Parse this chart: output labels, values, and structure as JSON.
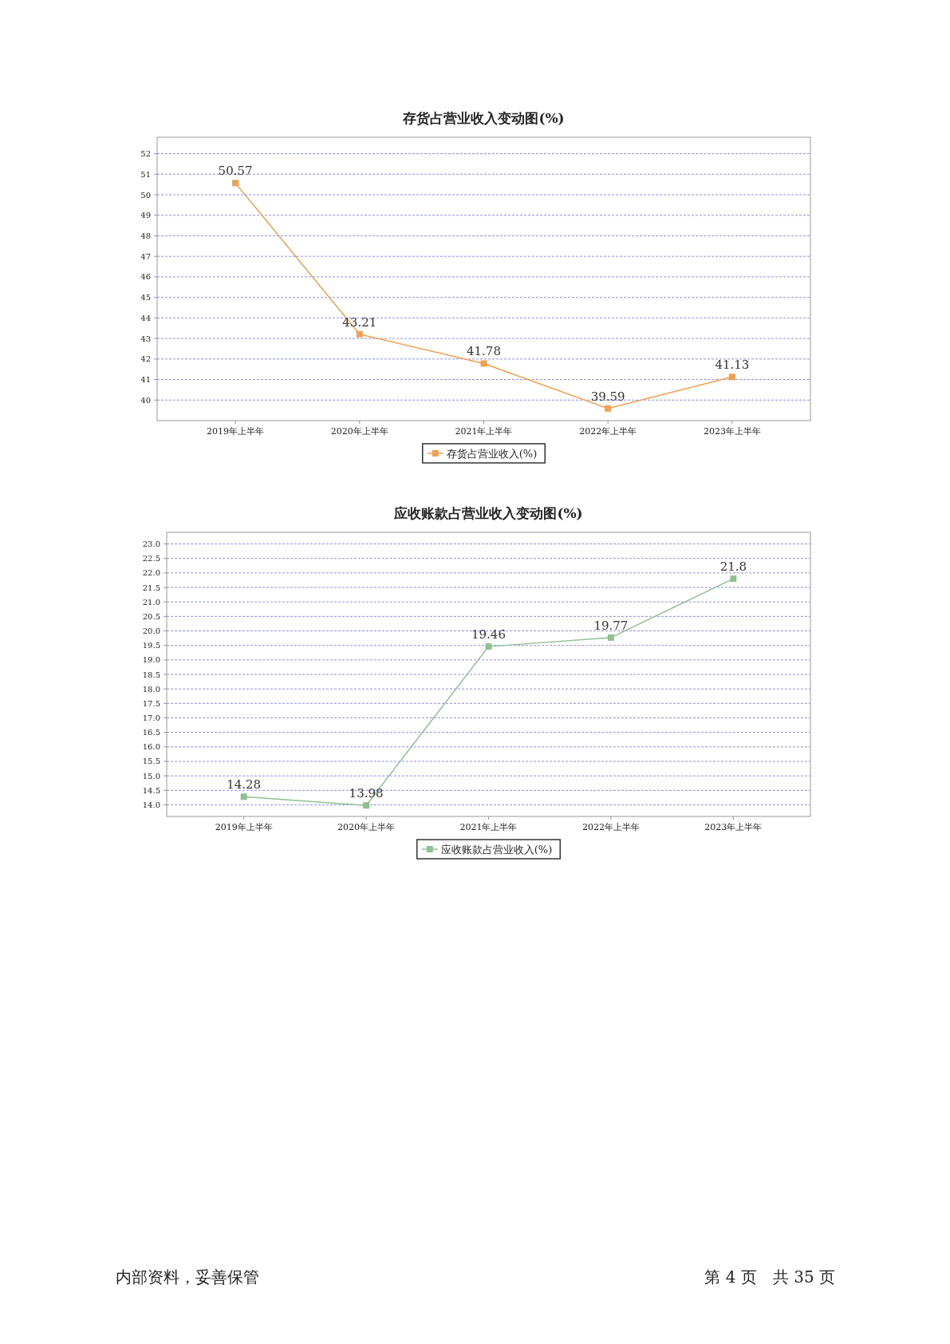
{
  "chart_data": [
    {
      "type": "line",
      "title": "存货占营业收入变动图(%)",
      "categories": [
        "2019年上半年",
        "2020年上半年",
        "2021年上半年",
        "2022年上半年",
        "2023年上半年"
      ],
      "series": [
        {
          "name": "存货占营业收入(%)",
          "color": "#f0a050",
          "values": [
            50.57,
            43.21,
            41.78,
            39.59,
            41.13
          ]
        }
      ],
      "ylim": [
        39,
        52.8
      ],
      "yticks": [
        40,
        41,
        42,
        43,
        44,
        45,
        46,
        47,
        48,
        49,
        50,
        51,
        52
      ],
      "grid": "y",
      "legend": "bottom",
      "marker": "square",
      "line_style": "solid",
      "data_labels": true
    },
    {
      "type": "line",
      "title": "应收账款占营业收入变动图(%)",
      "categories": [
        "2019年上半年",
        "2020年上半年",
        "2021年上半年",
        "2022年上半年",
        "2023年上半年"
      ],
      "series": [
        {
          "name": "应收账款占营业收入(%)",
          "color": "#90c090",
          "values": [
            14.28,
            13.98,
            19.46,
            19.77,
            21.8
          ]
        }
      ],
      "ylim": [
        13.6,
        23.4
      ],
      "yticks": [
        {
          "value": 14,
          "label": "14.0"
        },
        {
          "value": 14.5,
          "label": "14.5"
        },
        {
          "value": 15,
          "label": "15.0"
        },
        {
          "value": 15.5,
          "label": "15.5"
        },
        {
          "value": 16,
          "label": "16.0"
        },
        {
          "value": 16.5,
          "label": "16.5"
        },
        {
          "value": 17,
          "label": "17.0"
        },
        {
          "value": 17.5,
          "label": "17.5"
        },
        {
          "value": 18,
          "label": "18.0"
        },
        {
          "value": 18.5,
          "label": "18.5"
        },
        {
          "value": 19,
          "label": "19.0"
        },
        {
          "value": 19.5,
          "label": "19.5"
        },
        {
          "value": 20,
          "label": "20.0"
        },
        {
          "value": 20.5,
          "label": "20.5"
        },
        {
          "value": 21,
          "label": "21.0"
        },
        {
          "value": 21.5,
          "label": "21.5"
        },
        {
          "value": 22,
          "label": "22.0"
        },
        {
          "value": 22.5,
          "label": "22.5"
        },
        {
          "value": 23,
          "label": "23.0"
        }
      ],
      "grid": "y",
      "legend": "bottom",
      "marker": "square",
      "line_style": "solid",
      "data_labels": true,
      "annotations": [
        "内部资料，妥善保管",
        "第 4 页　共 35 页"
      ]
    }
  ]
}
